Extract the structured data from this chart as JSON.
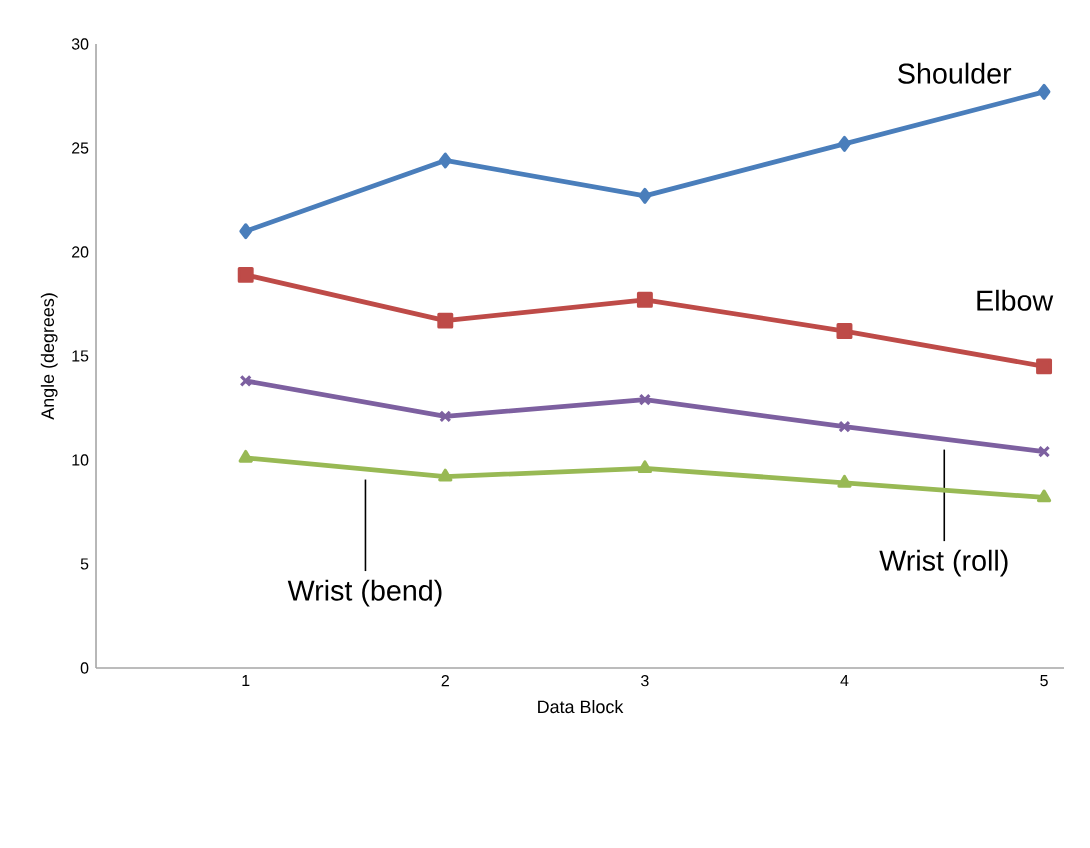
{
  "chart_data": {
    "type": "line",
    "xlabel": "Data Block",
    "ylabel": "Angle (degrees)",
    "x": [
      1,
      2,
      3,
      4,
      5
    ],
    "xlim": [
      0.25,
      5.1
    ],
    "xticks": [
      1,
      2,
      3,
      4,
      5
    ],
    "ylim": [
      0,
      30
    ],
    "yticks": [
      0,
      5,
      10,
      15,
      20,
      25,
      30
    ],
    "grid": false,
    "series": [
      {
        "name": "Shoulder",
        "color": "#4a7ebb",
        "marker": "diamond",
        "values": [
          21.0,
          24.4,
          22.7,
          25.2,
          27.7
        ]
      },
      {
        "name": "Elbow",
        "color": "#be4b48",
        "marker": "square",
        "values": [
          18.9,
          16.7,
          17.7,
          16.2,
          14.5
        ]
      },
      {
        "name": "Wrist (roll)",
        "color": "#7d60a0",
        "marker": "cross",
        "values": [
          13.8,
          12.1,
          12.9,
          11.6,
          10.4
        ]
      },
      {
        "name": "Wrist (bend)",
        "color": "#98b954",
        "marker": "triangle",
        "values": [
          10.1,
          9.2,
          9.6,
          8.9,
          8.2
        ]
      }
    ]
  }
}
